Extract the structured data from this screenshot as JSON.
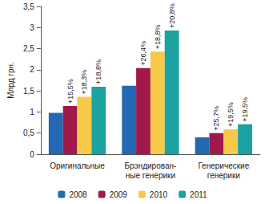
{
  "chart_data": {
    "type": "bar",
    "y_label": "Млрд грн.",
    "categories": [
      "Оригинальные",
      "Брэндирован-\nные генерики",
      "Генерические\nгенерики"
    ],
    "series": [
      {
        "name": "2008",
        "color": "#2468b4",
        "values": [
          0.98,
          1.62,
          0.4
        ]
      },
      {
        "name": "2009",
        "color": "#a0194a",
        "values": [
          1.14,
          2.04,
          0.5
        ],
        "annotations": [
          "+15,5%",
          "+26,4%",
          "+25,7%"
        ]
      },
      {
        "name": "2010",
        "color": "#f7c948",
        "values": [
          1.36,
          2.43,
          0.59
        ],
        "annotations": [
          "+18,3%",
          "+18,8%",
          "+19,5%"
        ]
      },
      {
        "name": "2011",
        "color": "#1aa3a0",
        "values": [
          1.6,
          2.93,
          0.71
        ],
        "annotations": [
          "+18,8%",
          "+20,8%",
          "+19,5%"
        ]
      }
    ],
    "ylim": [
      0,
      3.5
    ],
    "yticks": [
      0,
      {
        "value": 0.5,
        "label": "0,5"
      },
      1,
      {
        "value": 1.5,
        "label": "1,5"
      },
      2,
      {
        "value": 2.5,
        "label": "2,5"
      },
      3,
      {
        "value": 3.5,
        "label": "3,5"
      }
    ],
    "grid": false,
    "legend": "bottom"
  }
}
